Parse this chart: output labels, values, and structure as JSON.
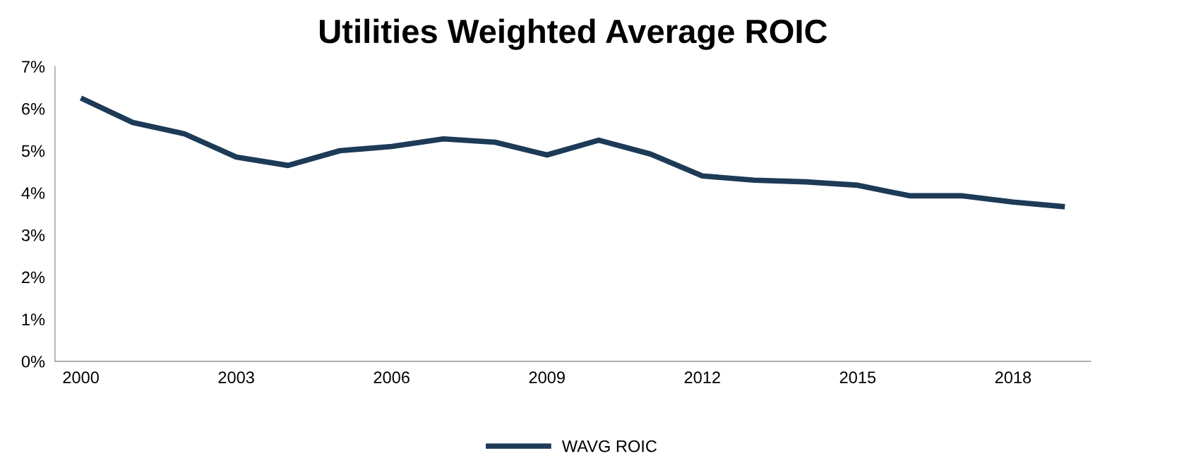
{
  "chart_data": {
    "type": "line",
    "title": "Utilities Weighted Average ROIC",
    "x": [
      2000,
      2001,
      2002,
      2003,
      2004,
      2005,
      2006,
      2007,
      2008,
      2009,
      2010,
      2011,
      2012,
      2013,
      2014,
      2015,
      2016,
      2017,
      2018,
      2019
    ],
    "series": [
      {
        "name": "WAVG ROIC",
        "color": "#1d3a57",
        "values": [
          6.25,
          5.67,
          5.4,
          4.85,
          4.65,
          5.0,
          5.1,
          5.28,
          5.2,
          4.9,
          5.25,
          4.92,
          4.4,
          4.3,
          4.26,
          4.18,
          3.93,
          3.93,
          3.78,
          3.67
        ]
      }
    ],
    "xlim": [
      1999.5,
      2019.5
    ],
    "xticks": [
      2000,
      2003,
      2006,
      2009,
      2012,
      2015,
      2018
    ],
    "ylim": [
      0,
      7
    ],
    "yticks": [
      {
        "value": 0,
        "label": "0%"
      },
      {
        "value": 1,
        "label": "1%"
      },
      {
        "value": 2,
        "label": "2%"
      },
      {
        "value": 3,
        "label": "3%"
      },
      {
        "value": 4,
        "label": "4%"
      },
      {
        "value": 5,
        "label": "5%"
      },
      {
        "value": 6,
        "label": "6%"
      },
      {
        "value": 7,
        "label": "7%"
      }
    ],
    "grid": false,
    "legend": "bottom",
    "marker": "none",
    "line_style": "solid"
  }
}
